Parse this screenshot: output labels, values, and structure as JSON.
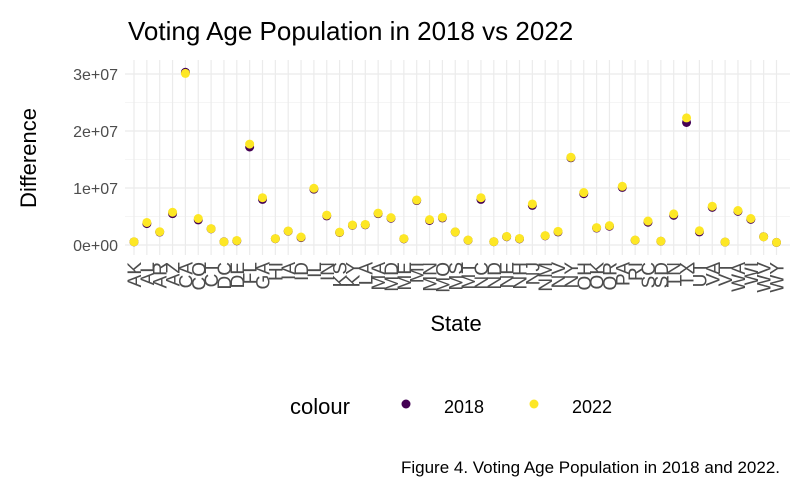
{
  "chart_data": {
    "type": "scatter",
    "title": "Voting Age Population in 2018 vs 2022",
    "xlabel": "State",
    "ylabel": "Difference",
    "ylim": [
      0,
      31000000
    ],
    "yticks": [
      0,
      10000000,
      20000000,
      30000000
    ],
    "ytick_labels": [
      "0e+00",
      "1e+07",
      "2e+07",
      "3e+07"
    ],
    "grid": true,
    "legend_title": "colour",
    "legend_position": "bottom",
    "categories": [
      "AK",
      "AL",
      "AR",
      "AZ",
      "CA",
      "CO",
      "CT",
      "DC",
      "DE",
      "FL",
      "GA",
      "HI",
      "IA",
      "ID",
      "IL",
      "IN",
      "KS",
      "KY",
      "LA",
      "MA",
      "MD",
      "ME",
      "MI",
      "MN",
      "MO",
      "MS",
      "MT",
      "NC",
      "ND",
      "NE",
      "NH",
      "NJ",
      "NM",
      "NV",
      "NY",
      "OH",
      "OK",
      "OR",
      "PA",
      "RI",
      "SC",
      "SD",
      "TN",
      "TX",
      "UT",
      "VA",
      "VT",
      "WA",
      "WI",
      "WV",
      "WY"
    ],
    "series": [
      {
        "name": "2018",
        "color": "#440154",
        "values": [
          550000,
          3750000,
          2270000,
          5500000,
          30300000,
          4400000,
          2830000,
          570000,
          730000,
          17200000,
          8000000,
          1100000,
          2420000,
          1300000,
          9800000,
          5100000,
          2200000,
          3450000,
          3550000,
          5500000,
          4700000,
          1080000,
          7800000,
          4300000,
          4750000,
          2270000,
          840000,
          8000000,
          580000,
          1450000,
          1080000,
          6950000,
          1600000,
          2300000,
          15300000,
          9000000,
          2980000,
          3300000,
          10100000,
          840000,
          4000000,
          660000,
          5200000,
          21500000,
          2300000,
          6600000,
          510000,
          5900000,
          4500000,
          1450000,
          450000
        ]
      },
      {
        "name": "2022",
        "color": "#fde725",
        "values": [
          560000,
          3950000,
          2330000,
          5750000,
          30100000,
          4650000,
          2870000,
          550000,
          780000,
          17700000,
          8300000,
          1120000,
          2460000,
          1400000,
          9950000,
          5250000,
          2250000,
          3500000,
          3600000,
          5600000,
          4800000,
          1120000,
          7900000,
          4450000,
          4850000,
          2300000,
          870000,
          8300000,
          590000,
          1500000,
          1130000,
          7200000,
          1650000,
          2400000,
          15400000,
          9200000,
          3050000,
          3400000,
          10300000,
          870000,
          4200000,
          690000,
          5450000,
          22300000,
          2500000,
          6800000,
          520000,
          6050000,
          4650000,
          1440000,
          460000
        ]
      }
    ]
  },
  "caption": "Figure 4. Voting Age Population in 2018 and 2022."
}
